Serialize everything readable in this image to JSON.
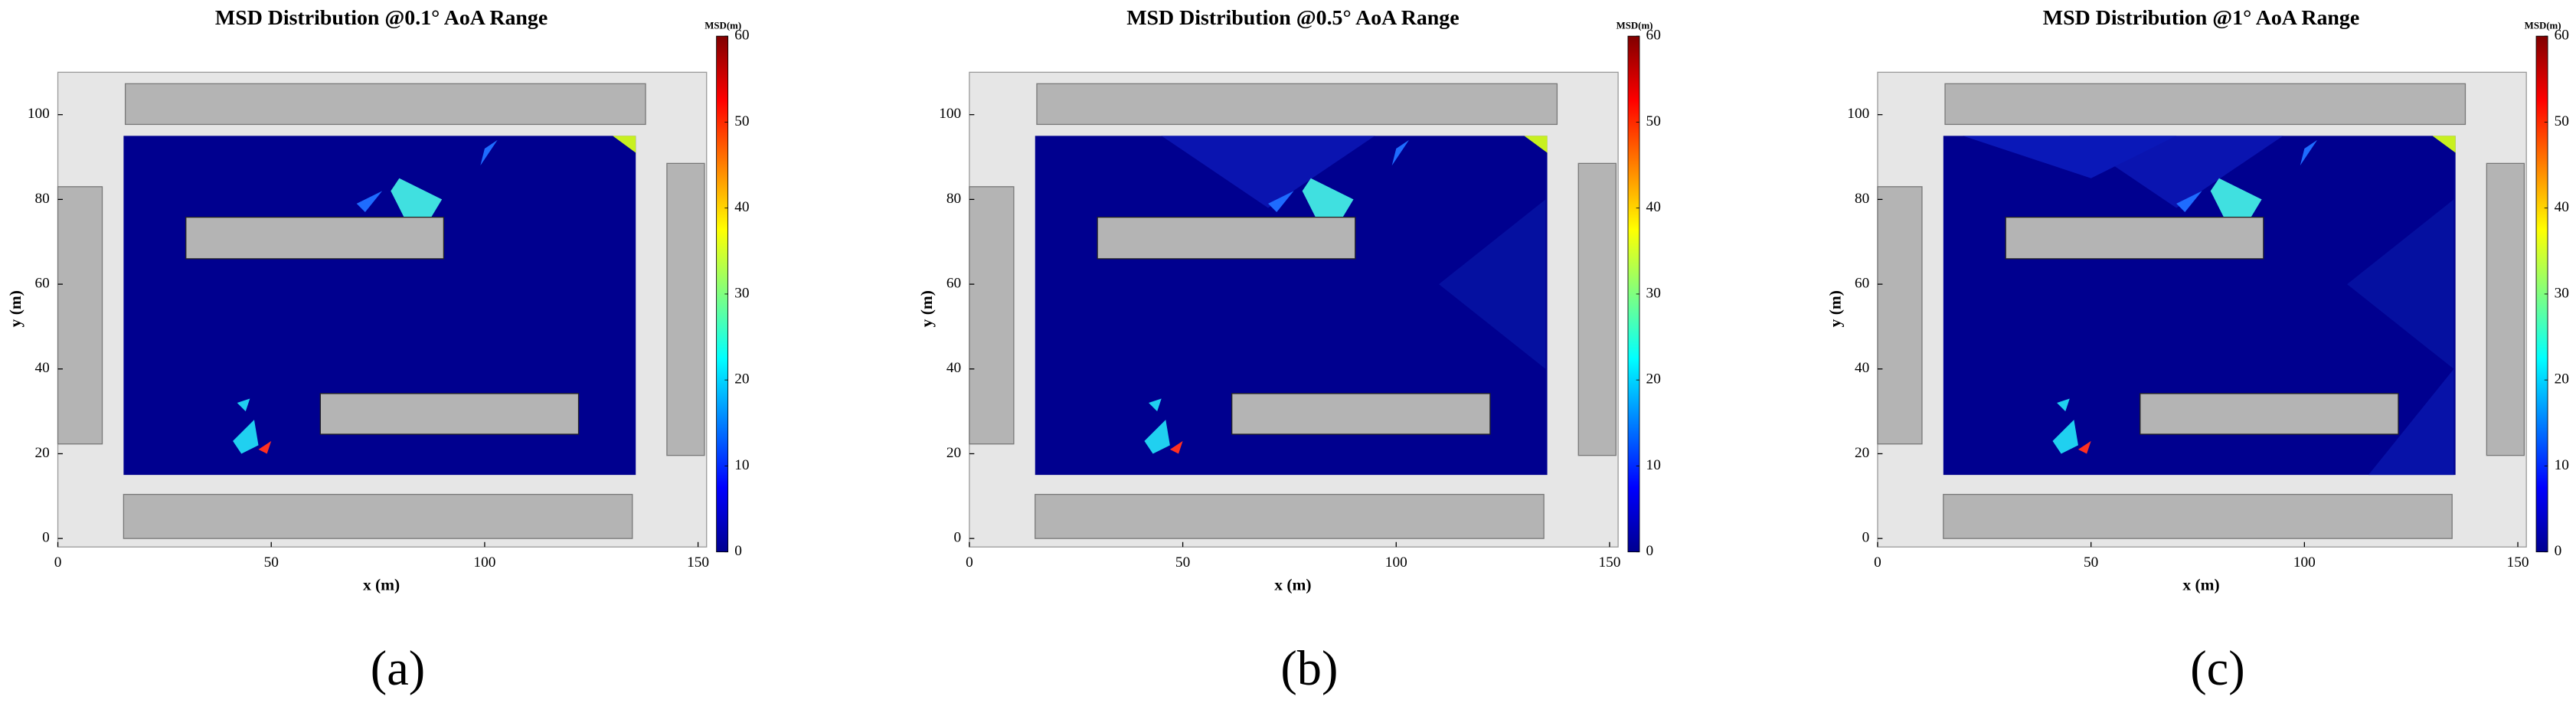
{
  "chart_data": [
    {
      "type": "heatmap",
      "title": "MSD Distribution @0.1° AoA Range",
      "xlabel": "x (m)",
      "ylabel": "y (m)",
      "xlim": [
        0,
        152
      ],
      "ylim": [
        -2,
        110
      ],
      "xticks": [
        0,
        50,
        100,
        150
      ],
      "yticks": [
        0,
        20,
        40,
        60,
        80,
        100
      ],
      "colorbar_label": "MSD(m)",
      "clim": [
        0,
        60
      ],
      "cticks": [
        0,
        10,
        20,
        30,
        40,
        50,
        60
      ],
      "colormap": "jet",
      "caption": "(a)"
    },
    {
      "type": "heatmap",
      "title": "MSD Distribution @0.5° AoA Range",
      "xlabel": "x (m)",
      "ylabel": "y (m)",
      "xlim": [
        0,
        152
      ],
      "ylim": [
        -2,
        110
      ],
      "xticks": [
        0,
        50,
        100,
        150
      ],
      "yticks": [
        0,
        20,
        40,
        60,
        80,
        100
      ],
      "colorbar_label": "MSD(m)",
      "clim": [
        0,
        60
      ],
      "cticks": [
        0,
        10,
        20,
        30,
        40,
        50,
        60
      ],
      "colormap": "jet",
      "caption": "(b)"
    },
    {
      "type": "heatmap",
      "title": "MSD Distribution @1° AoA Range",
      "xlabel": "x (m)",
      "ylabel": "y (m)",
      "xlim": [
        0,
        152
      ],
      "ylim": [
        -2,
        110
      ],
      "xticks": [
        0,
        50,
        100,
        150
      ],
      "yticks": [
        0,
        20,
        40,
        60,
        80,
        100
      ],
      "colorbar_label": "MSD(m)",
      "clim": [
        0,
        60
      ],
      "cticks": [
        0,
        10,
        20,
        30,
        40,
        50,
        60
      ],
      "colormap": "jet",
      "caption": "(c)"
    }
  ]
}
